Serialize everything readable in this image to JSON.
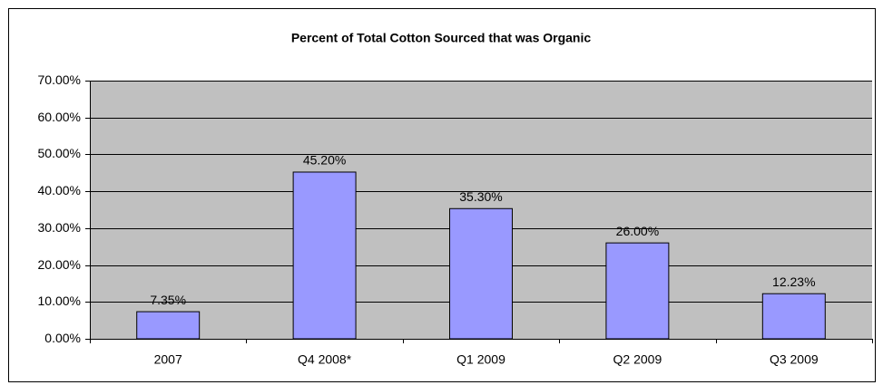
{
  "chart_data": {
    "type": "bar",
    "title": "Percent of Total Cotton Sourced that was Organic",
    "categories": [
      "2007",
      "Q4 2008*",
      "Q1 2009",
      "Q2 2009",
      "Q3 2009"
    ],
    "values": [
      7.35,
      45.2,
      35.3,
      26,
      12.23
    ],
    "value_labels": [
      "7.35%",
      "45.20%",
      "35.30%",
      "26.00%",
      "12.23%"
    ],
    "color": "#9999ff",
    "ylim": [
      0,
      70
    ],
    "yticks": [
      {
        "value": 0,
        "label": "0.00%"
      },
      {
        "value": 10,
        "label": "10.00%"
      },
      {
        "value": 20,
        "label": "20.00%"
      },
      {
        "value": 30,
        "label": "30.00%"
      },
      {
        "value": 40,
        "label": "40.00%"
      },
      {
        "value": 50,
        "label": "50.00%"
      },
      {
        "value": 60,
        "label": "60.00%"
      },
      {
        "value": 70,
        "label": "70.00%"
      }
    ],
    "grid": true
  }
}
